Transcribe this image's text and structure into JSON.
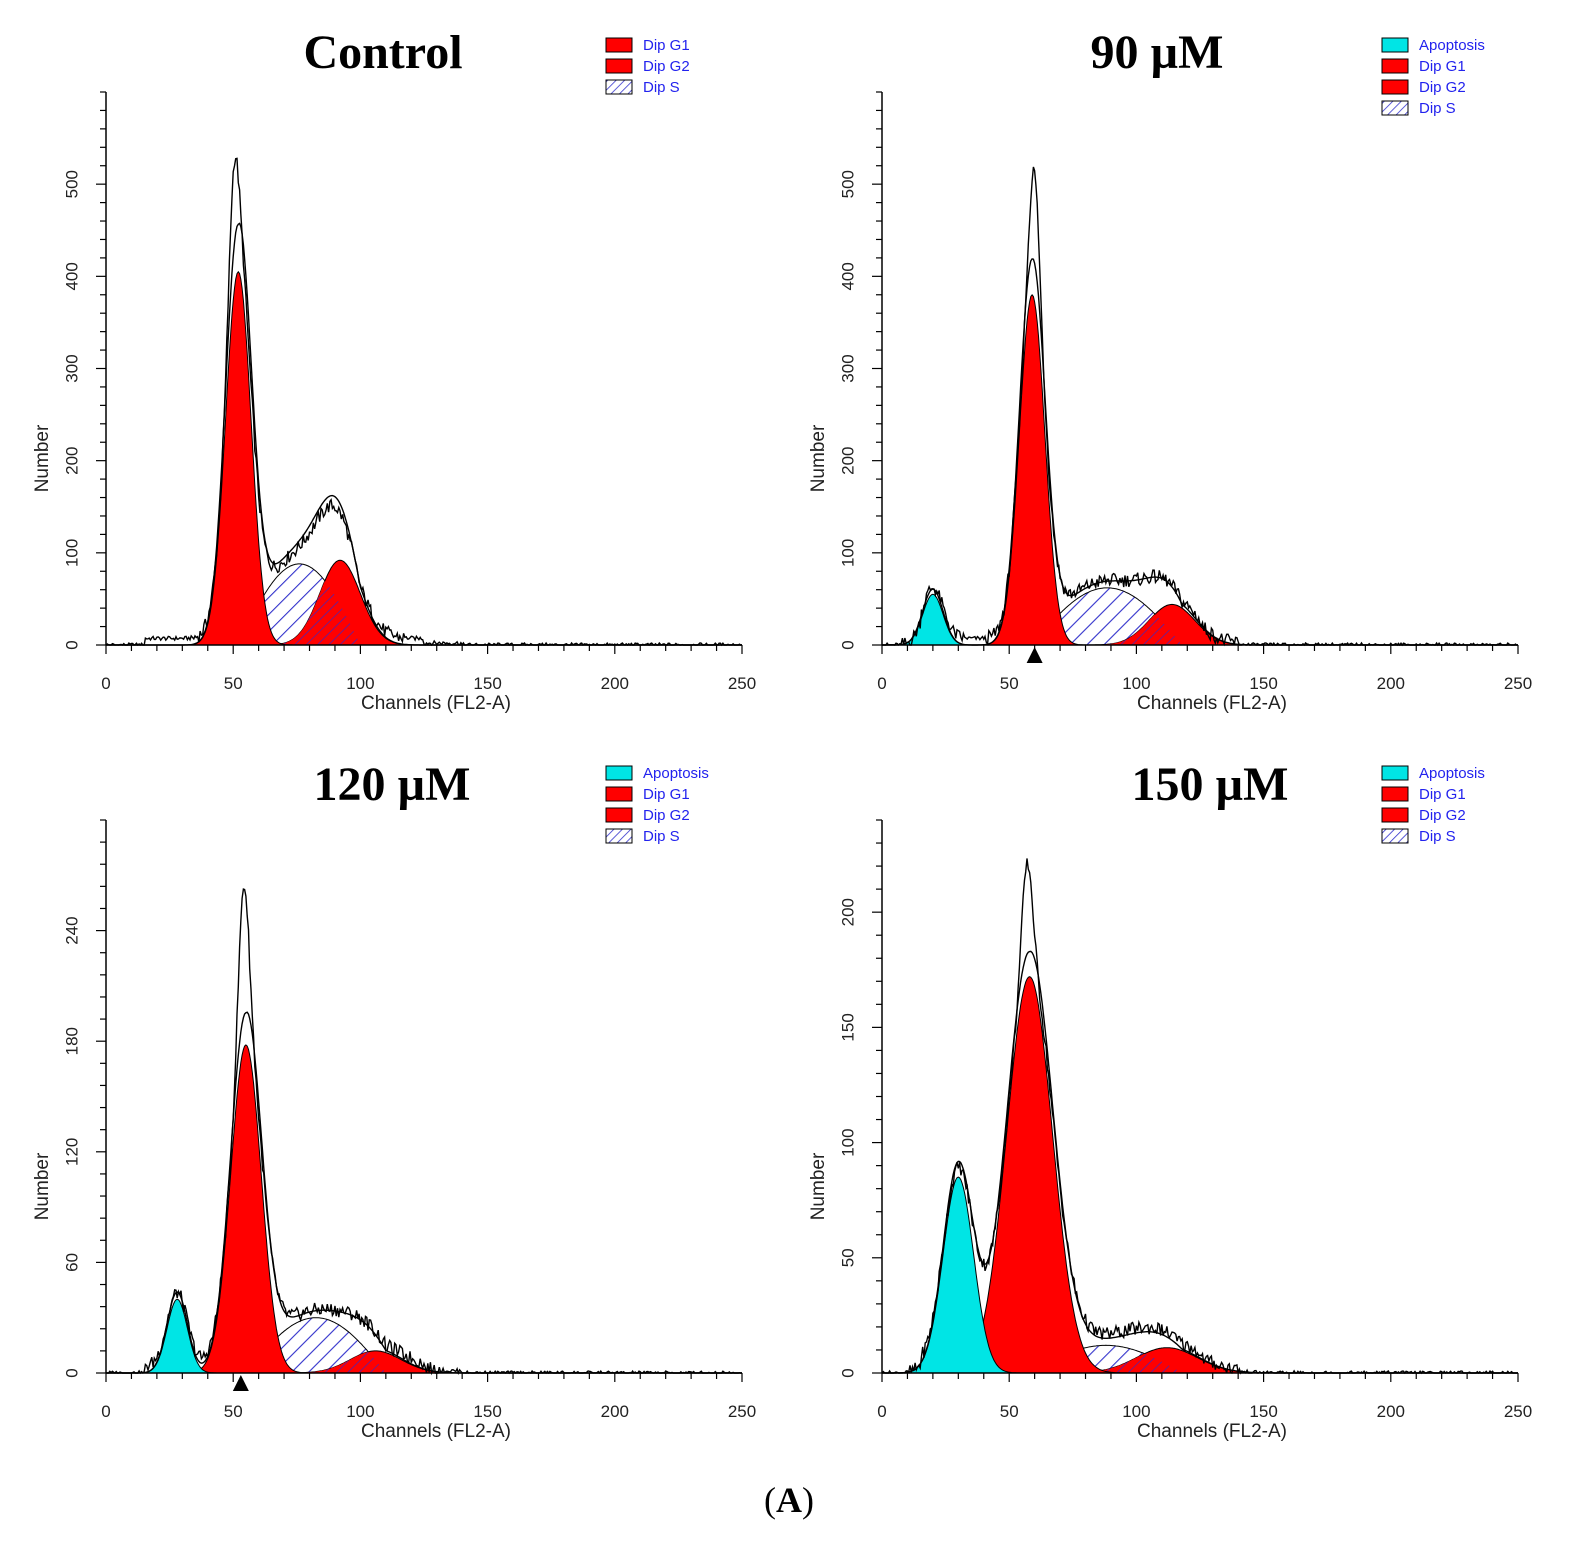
{
  "figure_label": {
    "open": "(",
    "letter": "A",
    "close": ")"
  },
  "colors": {
    "apoptosis": "#00e5e5",
    "dip_g1": "#ff0000",
    "dip_g2": "#ff0000",
    "dip_s_hatch": "#3333cc",
    "legend_text": "#2222ee",
    "trace": "#000000"
  },
  "chart_data": [
    {
      "type": "area",
      "title": "Control",
      "xlabel": "Channels (FL2-A)",
      "ylabel": "Number",
      "xlim": [
        0,
        250
      ],
      "ylim": [
        0,
        600
      ],
      "x_ticks": [
        0,
        50,
        100,
        150,
        200,
        250
      ],
      "y_ticks": [
        0,
        100,
        200,
        300,
        400,
        500
      ],
      "legend": [
        "Dip G1",
        "Dip G2",
        "Dip S"
      ],
      "legend_position": "top-right",
      "marker": null,
      "series": [
        {
          "name": "Dip G1",
          "kind": "gaussian",
          "center": 52,
          "sd": 5,
          "height": 405
        },
        {
          "name": "Dip S",
          "kind": "hump",
          "start": 52,
          "end": 100,
          "height": 88
        },
        {
          "name": "Dip G2",
          "kind": "gaussian",
          "center": 92,
          "sd": 8,
          "height": 92
        }
      ],
      "raw_peak": {
        "channel": 50,
        "value": 505
      },
      "fit_peak": {
        "channel": 53,
        "value": 455
      }
    },
    {
      "type": "area",
      "title": "90 µM",
      "xlabel": "Channels (FL2-A)",
      "ylabel": "Number",
      "xlim": [
        0,
        250
      ],
      "ylim": [
        0,
        600
      ],
      "x_ticks": [
        0,
        50,
        100,
        150,
        200,
        250
      ],
      "y_ticks": [
        0,
        100,
        200,
        300,
        400,
        500
      ],
      "legend": [
        "Apoptosis",
        "Dip G1",
        "Dip G2",
        "Dip S"
      ],
      "legend_position": "top-right",
      "marker": 60,
      "series": [
        {
          "name": "Apoptosis",
          "kind": "gaussian",
          "center": 20,
          "sd": 4,
          "height": 55
        },
        {
          "name": "Dip G1",
          "kind": "gaussian",
          "center": 59,
          "sd": 5,
          "height": 380
        },
        {
          "name": "Dip S",
          "kind": "hump",
          "start": 59,
          "end": 118,
          "height": 62
        },
        {
          "name": "Dip G2",
          "kind": "gaussian",
          "center": 114,
          "sd": 9,
          "height": 44
        }
      ],
      "raw_peak": {
        "channel": 60,
        "value": 505
      },
      "fit_peak": {
        "channel": 60,
        "value": 415
      }
    },
    {
      "type": "area",
      "title": "120 µM",
      "xlabel": "Channels (FL2-A)",
      "ylabel": "Number",
      "xlim": [
        0,
        250
      ],
      "ylim": [
        0,
        300
      ],
      "x_ticks": [
        0,
        50,
        100,
        150,
        200,
        250
      ],
      "y_ticks": [
        0,
        60,
        120,
        180,
        240
      ],
      "legend": [
        "Apoptosis",
        "Dip G1",
        "Dip G2",
        "Dip S"
      ],
      "legend_position": "top-right",
      "marker": 53,
      "series": [
        {
          "name": "Apoptosis",
          "kind": "gaussian",
          "center": 28,
          "sd": 4,
          "height": 40
        },
        {
          "name": "Dip G1",
          "kind": "gaussian",
          "center": 55,
          "sd": 6,
          "height": 178
        },
        {
          "name": "Dip S",
          "kind": "hump",
          "start": 55,
          "end": 110,
          "height": 30
        },
        {
          "name": "Dip G2",
          "kind": "gaussian",
          "center": 106,
          "sd": 10,
          "height": 12
        }
      ],
      "raw_peak": {
        "channel": 54,
        "value": 260
      },
      "fit_peak": {
        "channel": 56,
        "value": 195
      }
    },
    {
      "type": "area",
      "title": "150 µM",
      "xlabel": "Channels (FL2-A)",
      "ylabel": "Number",
      "xlim": [
        0,
        250
      ],
      "ylim": [
        0,
        240
      ],
      "x_ticks": [
        0,
        50,
        100,
        150,
        200,
        250
      ],
      "y_ticks": [
        0,
        50,
        100,
        150,
        200
      ],
      "legend": [
        "Apoptosis",
        "Dip G1",
        "Dip G2",
        "Dip S"
      ],
      "legend_position": "top-right",
      "marker": null,
      "series": [
        {
          "name": "Apoptosis",
          "kind": "gaussian",
          "center": 30,
          "sd": 6,
          "height": 85
        },
        {
          "name": "Dip G1",
          "kind": "gaussian",
          "center": 58,
          "sd": 9,
          "height": 172
        },
        {
          "name": "Dip S",
          "kind": "hump",
          "start": 58,
          "end": 118,
          "height": 12
        },
        {
          "name": "Dip G2",
          "kind": "gaussian",
          "center": 112,
          "sd": 12,
          "height": 11
        }
      ],
      "raw_peak": {
        "channel": 57,
        "value": 218
      },
      "fit_peak": {
        "channel": 60,
        "value": 180
      }
    }
  ]
}
